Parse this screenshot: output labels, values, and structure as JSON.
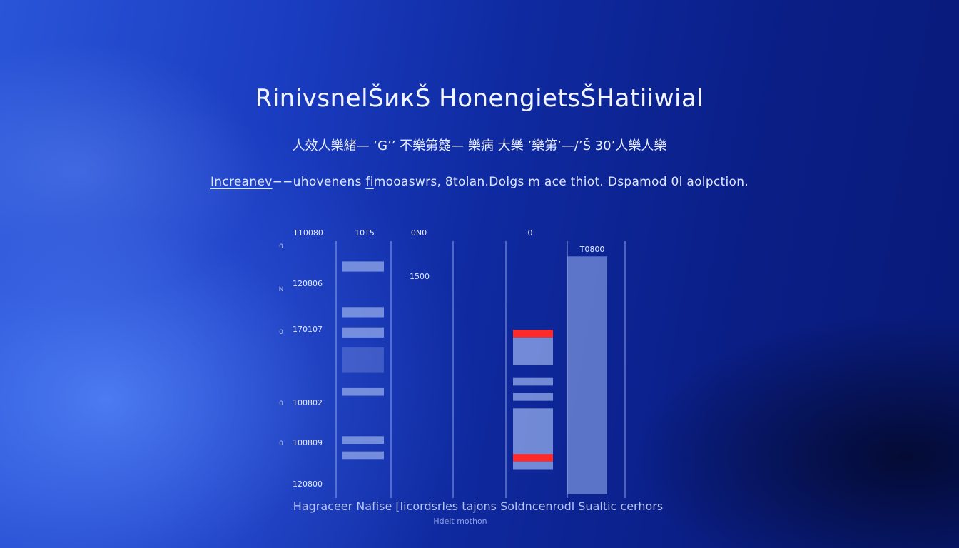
{
  "header": {
    "title": "RinivsnelŠикŠ HonengietsŠHatiiwial",
    "subtitle": "人效人樂緒—  ‘G’’ 不樂第籎— 樂病 大樂  ’樂第’—/’Š 30’人樂人樂",
    "description_underlined_1": "Increanev",
    "description_mid_1": "−−uhovenens ",
    "description_underlined_2": "fi",
    "description_rest": "mooaswrs,  8tolan.Dolgs  m ace thiot. Dspamod 0l aolpction."
  },
  "chart_data": {
    "type": "bar",
    "column_labels": [
      "T10080",
      "10T5",
      "0N0",
      "0",
      "T0800"
    ],
    "yticks": [
      "120806",
      "170107",
      "100802",
      "100809",
      "120800"
    ],
    "side_labels": [
      "0",
      "N",
      "0",
      "0",
      "0"
    ],
    "annotation": "1500",
    "xlabel": "Hagraceer Nafise [licordsrles     tajons Soldncenrodl Sualtic cerhors",
    "xsub": "Hdelt  mothon",
    "colors": {
      "bar": "#8ea6e8",
      "highlight": "#ff2a2a"
    },
    "columns": [
      {
        "name": "col-1",
        "bands": [
          {
            "from": 0.88,
            "to": 0.92
          },
          {
            "from": 0.7,
            "to": 0.74
          },
          {
            "from": 0.62,
            "to": 0.66
          },
          {
            "from": 0.48,
            "to": 0.58,
            "faded": true
          },
          {
            "from": 0.39,
            "to": 0.42
          },
          {
            "from": 0.2,
            "to": 0.23
          },
          {
            "from": 0.14,
            "to": 0.17
          }
        ]
      },
      {
        "name": "col-2",
        "bands": []
      },
      {
        "name": "col-3",
        "bands": [
          {
            "from": 0.62,
            "to": 0.65,
            "highlight": true
          },
          {
            "from": 0.51,
            "to": 0.62
          },
          {
            "from": 0.43,
            "to": 0.46
          },
          {
            "from": 0.37,
            "to": 0.4
          },
          {
            "from": 0.1,
            "to": 0.34
          },
          {
            "from": 0.13,
            "to": 0.16,
            "highlight": true
          }
        ]
      },
      {
        "name": "col-4",
        "bands": [
          {
            "from": 0.0,
            "to": 0.94
          }
        ]
      }
    ]
  }
}
